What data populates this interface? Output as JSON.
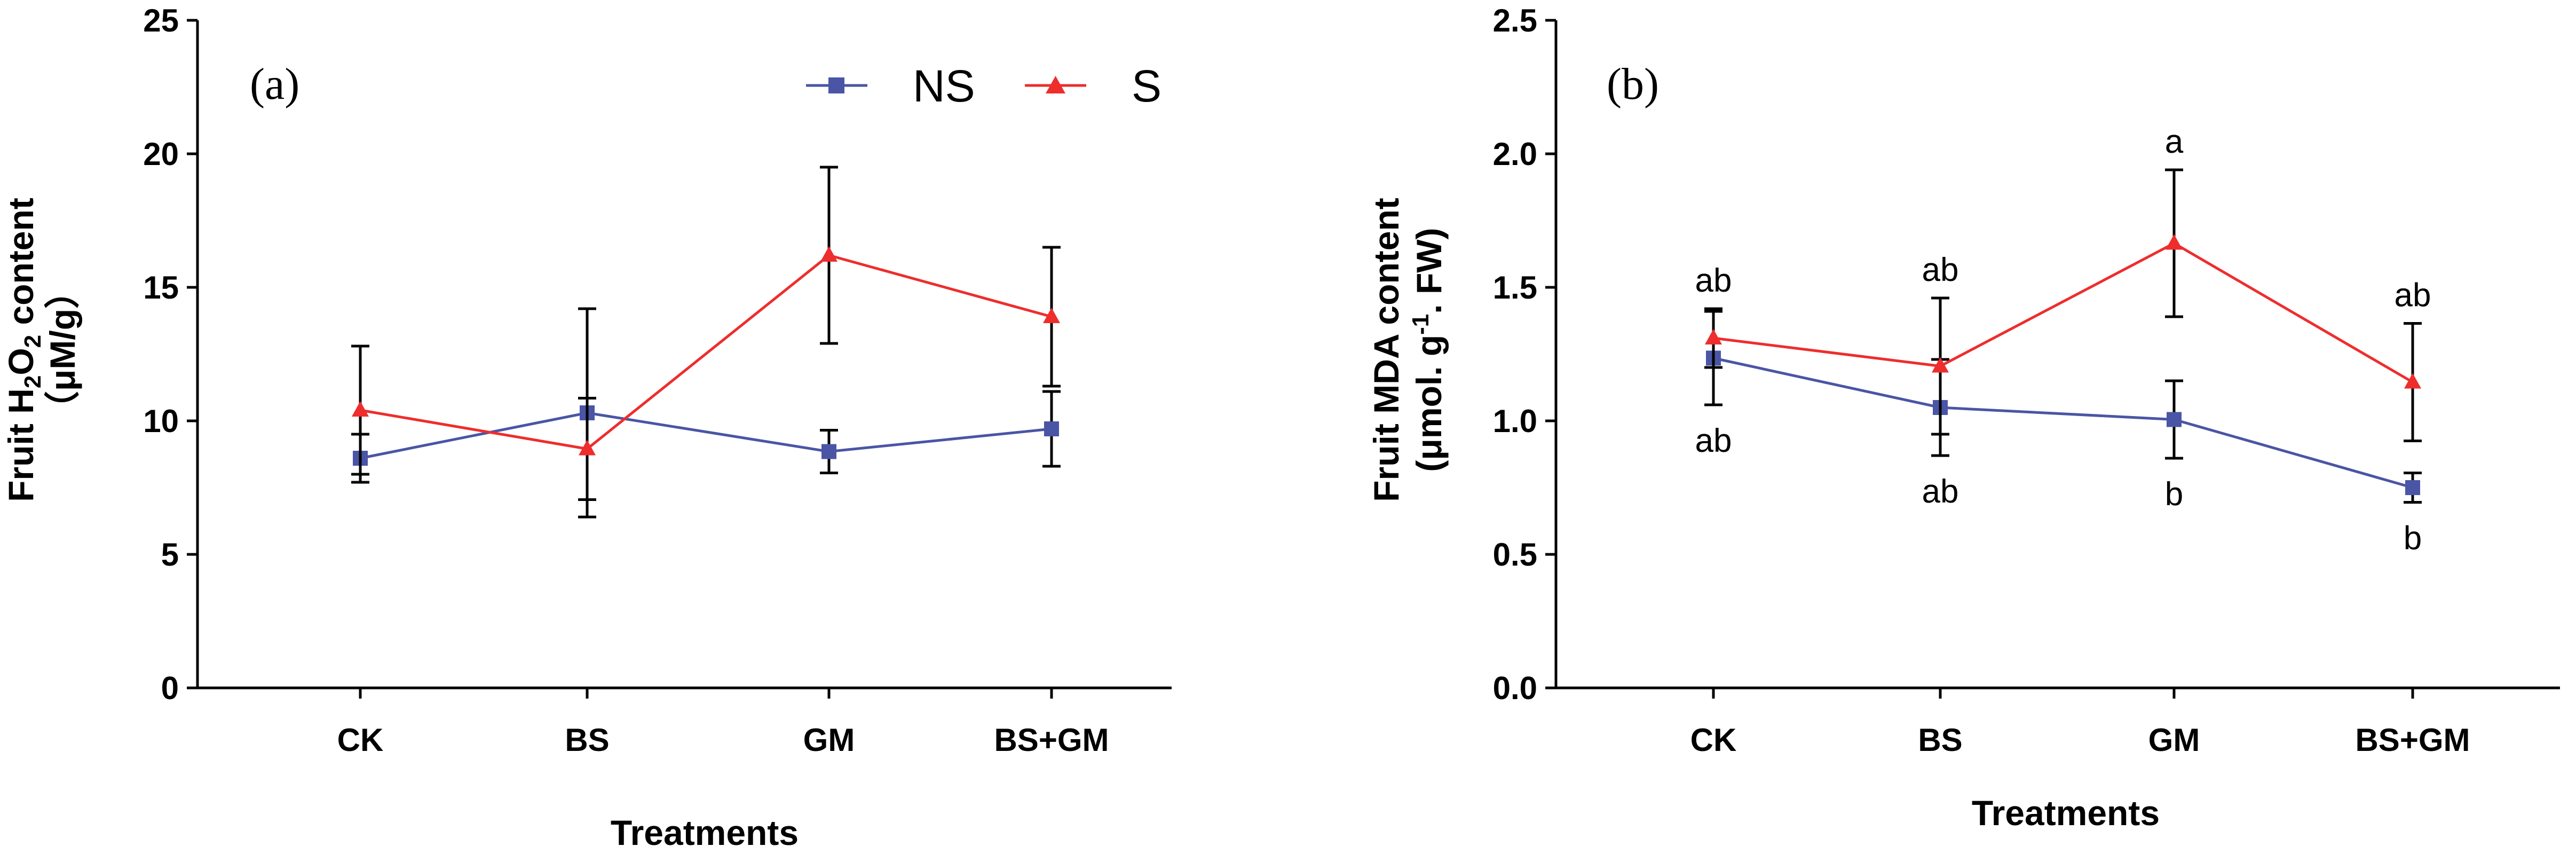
{
  "chart_data": [
    {
      "type": "line",
      "panel_label": "(a)",
      "ylabel_main": "Fruit H",
      "ylabel_sub1": "2",
      "ylabel_mid": "O",
      "ylabel_sub2": "2",
      "ylabel_end": " content",
      "ylabel_unit": "（μM/g）",
      "xlabel": "Treatments",
      "categories": [
        "CK",
        "BS",
        "GM",
        "BS+GM"
      ],
      "ylim": [
        0,
        25
      ],
      "yticks": [
        0,
        5,
        10,
        15,
        20,
        25
      ],
      "ytick_labels": [
        "0",
        "5",
        "10",
        "15",
        "20",
        "25"
      ],
      "legend": [
        "NS",
        "S"
      ],
      "series": [
        {
          "name": "NS",
          "color": "#4a55a5",
          "marker": "square",
          "values": [
            8.6,
            10.3,
            8.85,
            9.7
          ],
          "errors": [
            0.9,
            3.9,
            0.8,
            1.4
          ],
          "annotations_above": [],
          "annotations_below": []
        },
        {
          "name": "S",
          "color": "#ee2d2d",
          "marker": "triangle",
          "values": [
            10.4,
            8.95,
            16.2,
            13.9
          ],
          "errors": [
            2.4,
            1.9,
            3.3,
            2.6
          ],
          "annotations_above": [],
          "annotations_below": []
        }
      ]
    },
    {
      "type": "line",
      "panel_label": "(b)",
      "ylabel_main": "Fruit MDA content",
      "ylabel_unit_a": "(μmol. g",
      "ylabel_unit_sup": "-1",
      "ylabel_unit_b": ". FW)",
      "xlabel": "Treatments",
      "categories": [
        "CK",
        "BS",
        "GM",
        "BS+GM"
      ],
      "ylim": [
        0,
        2.5
      ],
      "yticks": [
        0,
        0.5,
        1.0,
        1.5,
        2.0,
        2.5
      ],
      "ytick_labels": [
        "0.0",
        "0.5",
        "1.0",
        "1.5",
        "2.0",
        "2.5"
      ],
      "series": [
        {
          "name": "NS",
          "color": "#4a55a5",
          "marker": "square",
          "values": [
            1.235,
            1.05,
            1.005,
            0.75
          ],
          "errors": [
            0.175,
            0.18,
            0.145,
            0.055
          ],
          "annotations_below": [
            "ab",
            "ab",
            "b",
            "b"
          ]
        },
        {
          "name": "S",
          "color": "#ee2d2d",
          "marker": "triangle",
          "values": [
            1.31,
            1.205,
            1.665,
            1.145
          ],
          "errors": [
            0.11,
            0.255,
            0.275,
            0.22
          ],
          "annotations_above": [
            "ab",
            "ab",
            "a",
            "ab"
          ]
        }
      ]
    }
  ]
}
